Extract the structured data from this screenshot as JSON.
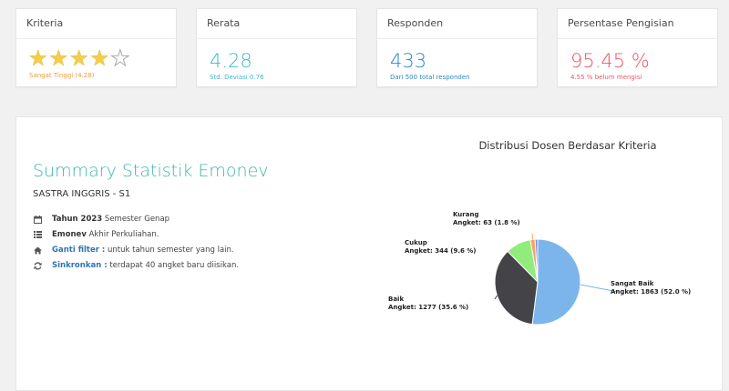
{
  "cards": [
    {
      "title": "Kriteria",
      "rating": 4,
      "max": 5,
      "sub": "Sangat Tinggi (4.28)",
      "color": "#f09a3e"
    },
    {
      "title": "Rerata",
      "value": "4.28",
      "sub": "Std. Deviasi 0.76",
      "color": "#3fb8c9"
    },
    {
      "title": "Responden",
      "value": "433",
      "sub": "Dari 500 total responden",
      "color": "#2e88c6"
    },
    {
      "title": "Persentase Pengisian",
      "value": "95.45 %",
      "sub": "4.55 % belum mengisi",
      "color": "#ec5663"
    }
  ],
  "summary": {
    "title": "Summary Statistik Emonev",
    "subtitle": "SASTRA INGGRIS - S1",
    "items": [
      {
        "icon": "calendar-icon",
        "bold": "Tahun 2023",
        "rest": " Semester Genap"
      },
      {
        "icon": "list-icon",
        "bold": "Emonev",
        "rest": " Akhir Perkuliahan."
      },
      {
        "icon": "home-icon",
        "link": "Ganti filter :",
        "rest": " untuk tahun semester yang lain."
      },
      {
        "icon": "sync-icon",
        "link": "Sinkronkan :",
        "rest": " terdapat 40 angket baru diisikan."
      }
    ]
  },
  "chart_data": {
    "type": "pie",
    "title": "Distribusi Dosen Berdasar Kriteria",
    "series": [
      {
        "name": "Sangat Baik",
        "value": 1863,
        "label": "Angket: 1863 (52.0 %)",
        "color": "#7cb5ec"
      },
      {
        "name": "Baik",
        "value": 1277,
        "label": "Angket: 1277 (35.6 %)",
        "color": "#434348"
      },
      {
        "name": "Cukup",
        "value": 344,
        "label": "Angket: 344 (9.6 %)",
        "color": "#90ed7d"
      },
      {
        "name": "Kurang",
        "value": 63,
        "label": "Angket: 63 (1.8 %)",
        "color": "#f7a35c"
      },
      {
        "name": "",
        "value": 35,
        "label": "",
        "color": "#8085e9"
      }
    ]
  }
}
